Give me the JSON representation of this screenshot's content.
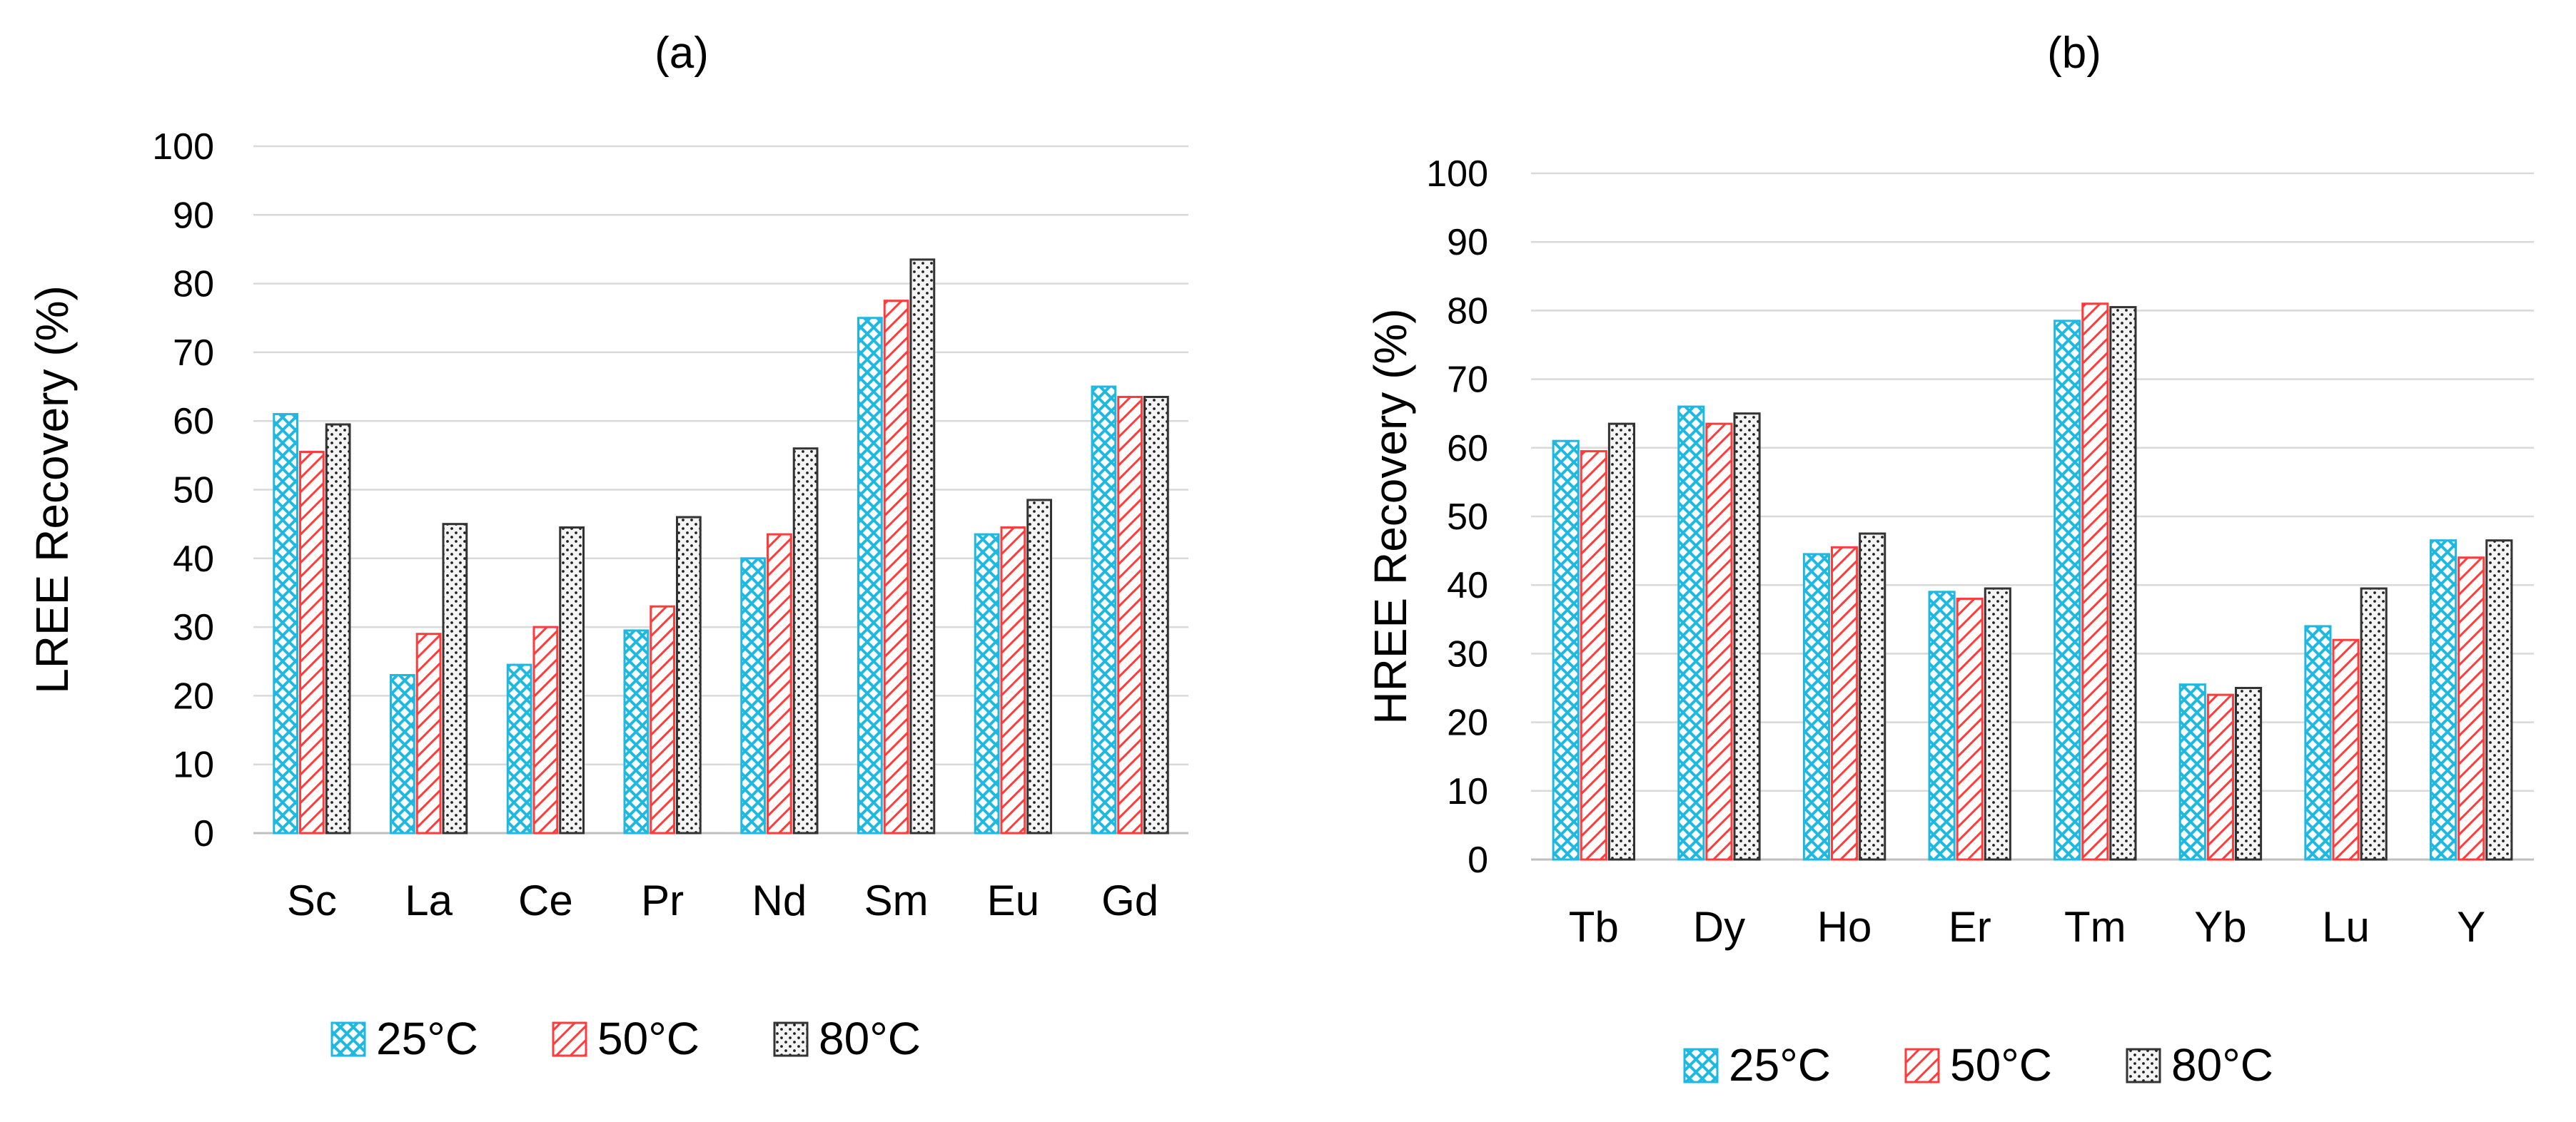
{
  "chart_data": [
    {
      "panel": "(a)",
      "type": "bar",
      "ylabel": "LREE Recovery (%)",
      "ylim": [
        0,
        100
      ],
      "yticks": [
        0,
        10,
        20,
        30,
        40,
        50,
        60,
        70,
        80,
        90,
        100
      ],
      "grid": true,
      "legend_position": "bottom",
      "categories": [
        "Sc",
        "La",
        "Ce",
        "Pr",
        "Nd",
        "Sm",
        "Eu",
        "Gd"
      ],
      "series": [
        {
          "name": "25°C",
          "color": "#1fb8e0",
          "pattern": "cross-hatch",
          "values": [
            61,
            23,
            24.5,
            29.5,
            40,
            75,
            43.5,
            65
          ]
        },
        {
          "name": "50°C",
          "color": "#ff3b3b",
          "pattern": "diagonal",
          "values": [
            55.5,
            29,
            30,
            33,
            43.5,
            77.5,
            44.5,
            63.5
          ]
        },
        {
          "name": "80°C",
          "color": "#333333",
          "pattern": "dots",
          "values": [
            59.5,
            45,
            44.5,
            46,
            56,
            83.5,
            48.5,
            63.5
          ]
        }
      ]
    },
    {
      "panel": "(b)",
      "type": "bar",
      "ylabel": "HREE Recovery (%)",
      "ylim": [
        0,
        100
      ],
      "yticks": [
        0,
        10,
        20,
        30,
        40,
        50,
        60,
        70,
        80,
        90,
        100
      ],
      "grid": true,
      "legend_position": "bottom",
      "categories": [
        "Tb",
        "Dy",
        "Ho",
        "Er",
        "Tm",
        "Yb",
        "Lu",
        "Y"
      ],
      "series": [
        {
          "name": "25°C",
          "color": "#1fb8e0",
          "pattern": "cross-hatch",
          "values": [
            61,
            66,
            44.5,
            39,
            78.5,
            25.5,
            34,
            46.5
          ]
        },
        {
          "name": "50°C",
          "color": "#ff3b3b",
          "pattern": "diagonal",
          "values": [
            59.5,
            63.5,
            45.5,
            38,
            81,
            24,
            32,
            44
          ]
        },
        {
          "name": "80°C",
          "color": "#333333",
          "pattern": "dots",
          "values": [
            63.5,
            65,
            47.5,
            39.5,
            80.5,
            25,
            39.5,
            46.5
          ]
        }
      ]
    }
  ]
}
